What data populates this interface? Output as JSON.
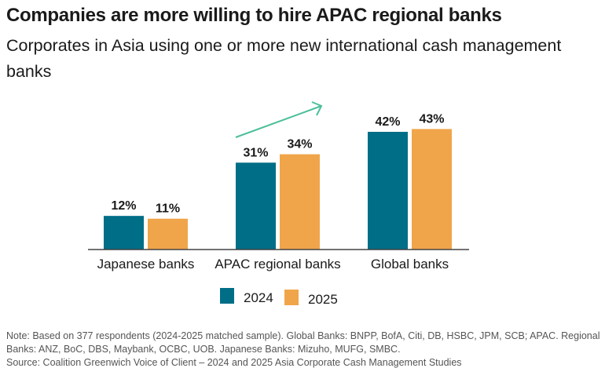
{
  "chart_data": {
    "type": "bar",
    "title": "Companies are more willing to hire APAC regional banks",
    "subtitle": "Corporates in Asia using one or more new international cash management banks",
    "categories": [
      "Japanese banks",
      "APAC regional banks",
      "Global banks"
    ],
    "series": [
      {
        "name": "2024",
        "values": [
          12,
          31,
          42
        ],
        "labels": [
          "12%",
          "31%",
          "42%"
        ],
        "color": "#006e87"
      },
      {
        "name": "2025",
        "values": [
          11,
          34,
          43
        ],
        "labels": [
          "11%",
          "34%",
          "43%"
        ],
        "color": "#f0a54a"
      }
    ],
    "ylim": [
      0,
      42
    ],
    "grid": false,
    "legend_position": "bottom",
    "annotation": {
      "type": "upward-arrow",
      "over": "APAC regional banks",
      "color": "#4cbf9c"
    }
  },
  "footer": {
    "note_line1": "Note: Based on 377 respondents (2024-2025 matched sample). Global Banks: BNPP, BofA, Citi, DB, HSBC, JPM, SCB; APAC. Regional Banks: ANZ, BoC, DBS, Maybank, OCBC, UOB.  Japanese Banks: Mizuho, MUFG, SMBC.",
    "source": "Source: Coalition Greenwich Voice of Client – 2024 and 2025 Asia Corporate Cash Management Studies"
  }
}
